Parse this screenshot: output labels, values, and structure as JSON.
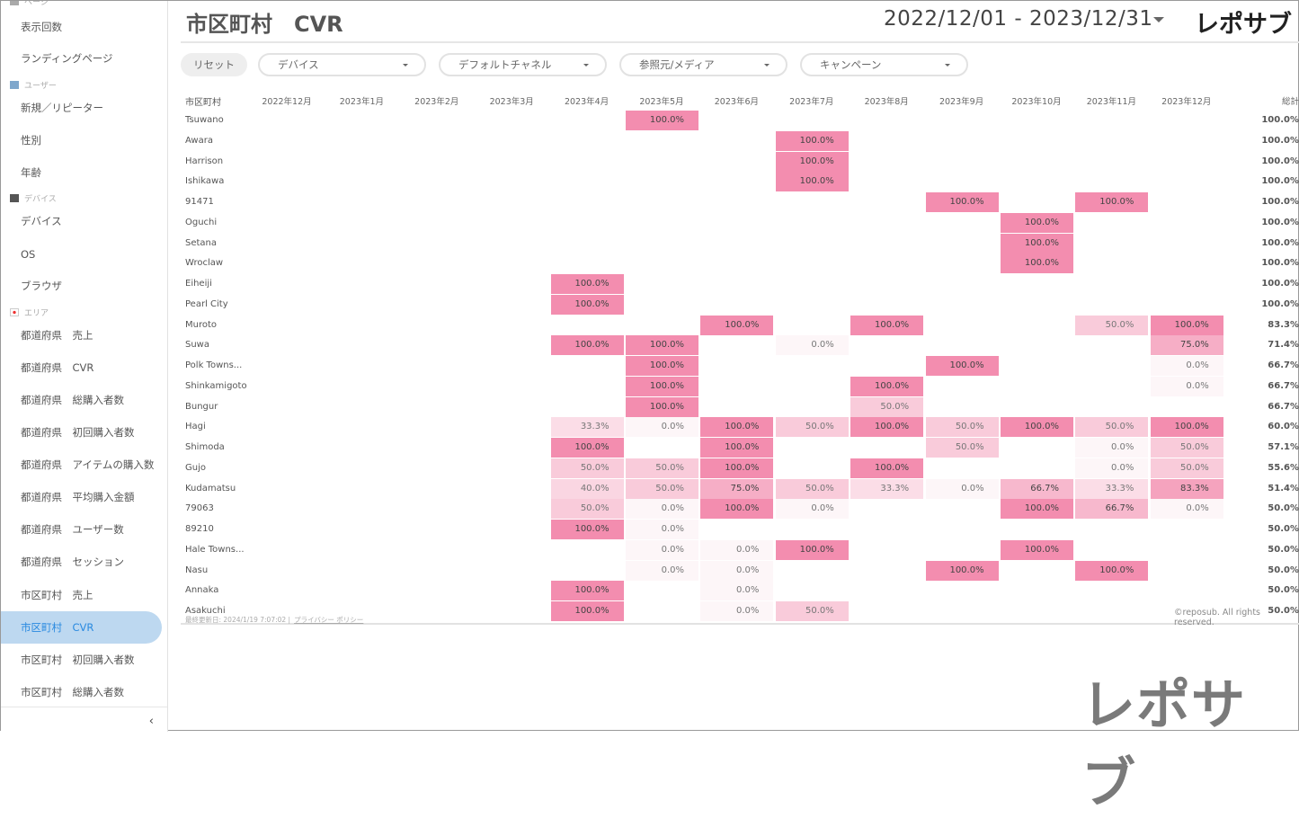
{
  "sidebar": {
    "sections": [
      {
        "label": "ページ",
        "icon": "page-icon"
      },
      {
        "label": "ユーザー",
        "icon": "user-icon"
      },
      {
        "label": "デバイス",
        "icon": "laptop-icon"
      },
      {
        "label": "エリア",
        "icon": "japan-flag-icon"
      }
    ],
    "items": [
      "表示回数",
      "ランディングページ",
      "新規／リピーター",
      "性別",
      "年齢",
      "デバイス",
      "OS",
      "ブラウザ",
      "都道府県　売上",
      "都道府県　CVR",
      "都道府県　総購入者数",
      "都道府県　初回購入者数",
      "都道府県　アイテムの購入数",
      "都道府県　平均購入金額",
      "都道府県　ユーザー数",
      "都道府県　セッション",
      "市区町村　売上",
      "市区町村　CVR",
      "市区町村　初回購入者数",
      "市区町村　総購入者数"
    ],
    "active_index": 17,
    "collapse_icon": "chevron-left-icon"
  },
  "header": {
    "title": "市区町村　CVR",
    "date_range": "2022/12/01 - 2023/12/31",
    "logo": "レポサブ"
  },
  "filters": {
    "reset": "リセット",
    "dropdowns": [
      "デバイス",
      "デフォルトチャネル",
      "参照元/メディア",
      "キャンペーン"
    ]
  },
  "colors": {
    "high": "#f38daf",
    "low": "#fdf6f8",
    "active_bg": "#bdd8f0",
    "active_text": "#2a8ae0"
  },
  "table": {
    "row_header": "市区町村",
    "columns": [
      "2022年12月",
      "2023年1月",
      "2023年2月",
      "2023年3月",
      "2023年4月",
      "2023年5月",
      "2023年6月",
      "2023年7月",
      "2023年8月",
      "2023年9月",
      "2023年10月",
      "2023年11月",
      "2023年12月"
    ],
    "total_header": "総計",
    "rows": [
      {
        "name": "Tsuwano",
        "cells": {
          "5": 100
        },
        "total": "100.0%"
      },
      {
        "name": "Awara",
        "cells": {
          "7": 100
        },
        "total": "100.0%"
      },
      {
        "name": "Harrison",
        "cells": {
          "7": 100
        },
        "total": "100.0%"
      },
      {
        "name": "Ishikawa",
        "cells": {
          "7": 100
        },
        "total": "100.0%"
      },
      {
        "name": "91471",
        "cells": {
          "9": 100,
          "11": 100
        },
        "total": "100.0%"
      },
      {
        "name": "Oguchi",
        "cells": {
          "10": 100
        },
        "total": "100.0%"
      },
      {
        "name": "Setana",
        "cells": {
          "10": 100
        },
        "total": "100.0%"
      },
      {
        "name": "Wroclaw",
        "cells": {
          "10": 100
        },
        "total": "100.0%"
      },
      {
        "name": "Eiheiji",
        "cells": {
          "4": 100
        },
        "total": "100.0%"
      },
      {
        "name": "Pearl City",
        "cells": {
          "4": 100
        },
        "total": "100.0%"
      },
      {
        "name": "Muroto",
        "cells": {
          "6": 100,
          "8": 100,
          "11": 50,
          "12": 100
        },
        "total": "83.3%"
      },
      {
        "name": "Suwa",
        "cells": {
          "4": 100,
          "5": 100,
          "7": 0,
          "12": 75
        },
        "total": "71.4%"
      },
      {
        "name": "Polk Towns...",
        "cells": {
          "5": 100,
          "9": 100,
          "12": 0
        },
        "total": "66.7%"
      },
      {
        "name": "Shinkamigoto",
        "cells": {
          "5": 100,
          "8": 100,
          "12": 0
        },
        "total": "66.7%"
      },
      {
        "name": "Bungur",
        "cells": {
          "5": 100,
          "8": 50
        },
        "total": "66.7%"
      },
      {
        "name": "Hagi",
        "cells": {
          "4": 33.3,
          "5": 0,
          "6": 100,
          "7": 50,
          "8": 100,
          "9": 50,
          "10": 100,
          "11": 50,
          "12": 100
        },
        "total": "60.0%"
      },
      {
        "name": "Shimoda",
        "cells": {
          "4": 100,
          "6": 100,
          "9": 50,
          "11": 0,
          "12": 50
        },
        "total": "57.1%"
      },
      {
        "name": "Gujo",
        "cells": {
          "4": 50,
          "5": 50,
          "6": 100,
          "8": 100,
          "11": 0,
          "12": 50
        },
        "total": "55.6%"
      },
      {
        "name": "Kudamatsu",
        "cells": {
          "4": 40,
          "5": 50,
          "6": 75,
          "7": 50,
          "8": 33.3,
          "9": 0,
          "10": 66.7,
          "11": 33.3,
          "12": 83.3
        },
        "total": "51.4%"
      },
      {
        "name": "79063",
        "cells": {
          "4": 50,
          "5": 0,
          "6": 100,
          "7": 0,
          "10": 100,
          "11": 66.7,
          "12": 0
        },
        "total": "50.0%"
      },
      {
        "name": "89210",
        "cells": {
          "4": 100,
          "5": 0
        },
        "total": "50.0%"
      },
      {
        "name": "Hale Towns...",
        "cells": {
          "5": 0,
          "6": 0,
          "7": 100,
          "10": 100
        },
        "total": "50.0%"
      },
      {
        "name": "Nasu",
        "cells": {
          "5": 0,
          "6": 0,
          "9": 100,
          "11": 100
        },
        "total": "50.0%"
      },
      {
        "name": "Annaka",
        "cells": {
          "4": 100,
          "6": 0
        },
        "total": "50.0%"
      },
      {
        "name": "Asakuchi",
        "cells": {
          "4": 100,
          "6": 0,
          "7": 50
        },
        "total": "50.0%"
      }
    ]
  },
  "footer": {
    "updated": "最終更新日: 2024/1/19 7:07:02 |",
    "privacy": "プライバシー ポリシー",
    "copyright": "©reposub. All rights reserved."
  },
  "watermark_logo": "レポサブ"
}
